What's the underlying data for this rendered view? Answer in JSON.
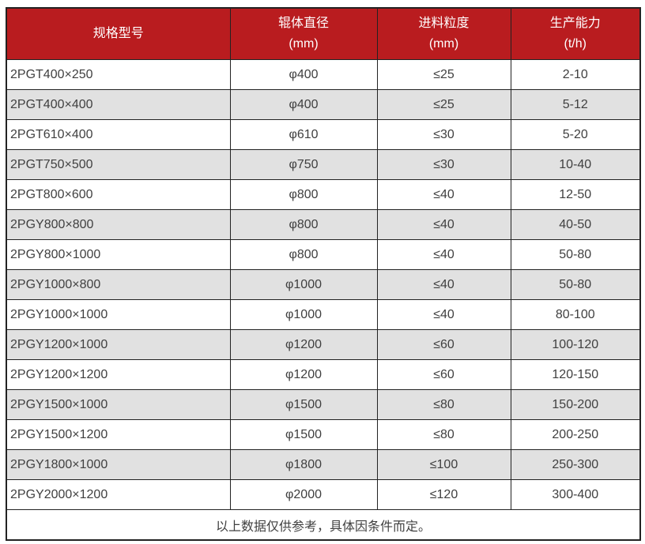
{
  "colors": {
    "header_bg": "#b91c1f",
    "header_text": "#ffffff",
    "row_alt_bg": "#e1e1e1",
    "row_bg": "#ffffff",
    "border": "#222222",
    "text": "#404040"
  },
  "table": {
    "columns": [
      {
        "label": "规格型号",
        "unit": ""
      },
      {
        "label": "辊体直径",
        "unit": "(mm)"
      },
      {
        "label": "进料粒度",
        "unit": "(mm)"
      },
      {
        "label": "生产能力",
        "unit": "(t/h)"
      }
    ],
    "rows": [
      [
        "2PGT400×250",
        "φ400",
        "≤25",
        "2-10"
      ],
      [
        "2PGT400×400",
        "φ400",
        "≤25",
        "5-12"
      ],
      [
        "2PGT610×400",
        "φ610",
        "≤30",
        "5-20"
      ],
      [
        "2PGT750×500",
        "φ750",
        "≤30",
        "10-40"
      ],
      [
        "2PGT800×600",
        "φ800",
        "≤40",
        "12-50"
      ],
      [
        "2PGY800×800",
        "φ800",
        "≤40",
        "40-50"
      ],
      [
        "2PGY800×1000",
        "φ800",
        "≤40",
        "50-80"
      ],
      [
        "2PGY1000×800",
        "φ1000",
        "≤40",
        "50-80"
      ],
      [
        "2PGY1000×1000",
        "φ1000",
        "≤40",
        "80-100"
      ],
      [
        "2PGY1200×1000",
        "φ1200",
        "≤60",
        "100-120"
      ],
      [
        "2PGY1200×1200",
        "φ1200",
        "≤60",
        "120-150"
      ],
      [
        "2PGY1500×1000",
        "φ1500",
        "≤80",
        "150-200"
      ],
      [
        "2PGY1500×1200",
        "φ1500",
        "≤80",
        "200-250"
      ],
      [
        "2PGY1800×1000",
        "φ1800",
        "≤100",
        "250-300"
      ],
      [
        "2PGY2000×1200",
        "φ2000",
        "≤120",
        "300-400"
      ]
    ],
    "footnote": "以上数据仅供参考，具体因条件而定。"
  }
}
